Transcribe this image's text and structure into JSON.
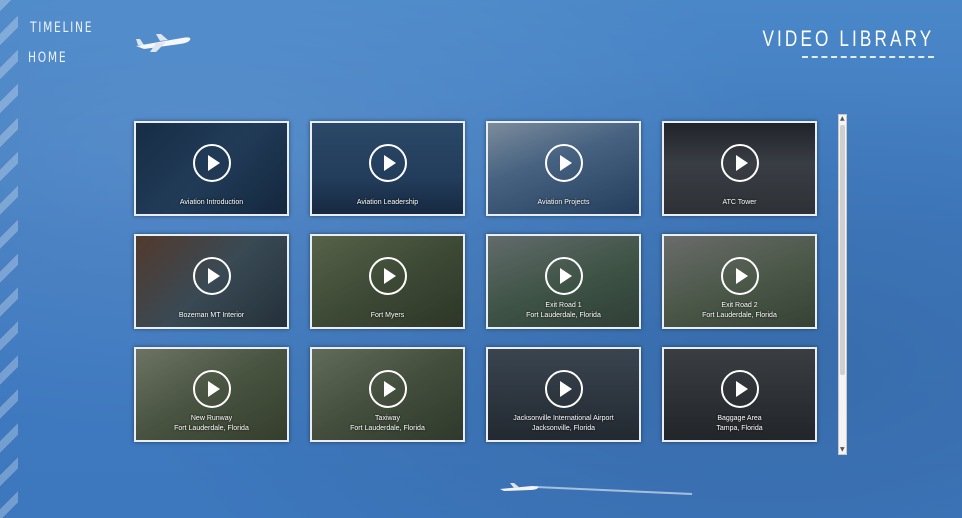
{
  "nav": {
    "timeline": "TIMELINE",
    "home": "HOME"
  },
  "header": {
    "title": "VIDEO LIBRARY"
  },
  "videos": [
    {
      "title": "Aviation Introduction",
      "subtitle": "",
      "thumb": "logo-dark"
    },
    {
      "title": "Aviation Leadership",
      "subtitle": "",
      "thumb": "silhouettes"
    },
    {
      "title": "Aviation Projects",
      "subtitle": "",
      "thumb": "terminal-arch"
    },
    {
      "title": "ATC Tower",
      "subtitle": "",
      "thumb": "airfield-dusk"
    },
    {
      "title": "Bozeman MT Interior",
      "subtitle": "",
      "thumb": "interior"
    },
    {
      "title": "Fort Myers",
      "subtitle": "",
      "thumb": "aerial-green"
    },
    {
      "title": "Exit Road 1",
      "subtitle": "Fort Lauderdale, Florida",
      "thumb": "garage-road"
    },
    {
      "title": "Exit Road 2",
      "subtitle": "Fort Lauderdale, Florida",
      "thumb": "garage-palms"
    },
    {
      "title": "New Runway",
      "subtitle": "Fort Lauderdale, Florida",
      "thumb": "runway-aerial"
    },
    {
      "title": "Taxiway",
      "subtitle": "Fort Lauderdale, Florida",
      "thumb": "taxiway-aerial"
    },
    {
      "title": "Jacksonville International Airport",
      "subtitle": "Jacksonville, Florida",
      "thumb": "terminal-front"
    },
    {
      "title": "Baggage Area",
      "subtitle": "Tampa, Florida",
      "thumb": "baggage"
    }
  ],
  "colors": {
    "background": "#3f7ac0",
    "tile_border": "#e9eef5",
    "text": "#ffffff"
  }
}
